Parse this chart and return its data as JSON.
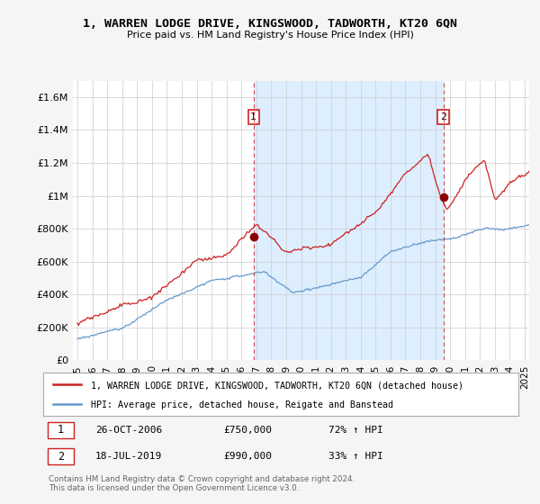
{
  "title": "1, WARREN LODGE DRIVE, KINGSWOOD, TADWORTH, KT20 6QN",
  "subtitle": "Price paid vs. HM Land Registry's House Price Index (HPI)",
  "property_color": "#cc2222",
  "hpi_color": "#6699cc",
  "shade_color": "#ddeeff",
  "background_color": "#f5f5f5",
  "plot_bg_color": "#ffffff",
  "ylim": [
    0,
    1700000
  ],
  "yticks": [
    0,
    200000,
    400000,
    600000,
    800000,
    1000000,
    1200000,
    1400000,
    1600000
  ],
  "ytick_labels": [
    "£0",
    "£200K",
    "£400K",
    "£600K",
    "£800K",
    "£1M",
    "£1.2M",
    "£1.4M",
    "£1.6M"
  ],
  "sale1_year": 2006.82,
  "sale1_price": 750000,
  "sale2_year": 2019.55,
  "sale2_price": 990000,
  "legend_property": "1, WARREN LODGE DRIVE, KINGSWOOD, TADWORTH, KT20 6QN (detached house)",
  "legend_hpi": "HPI: Average price, detached house, Reigate and Banstead",
  "footer": "Contains HM Land Registry data © Crown copyright and database right 2024.\nThis data is licensed under the Open Government Licence v3.0.",
  "xmin": 1995.0,
  "xmax": 2025.3
}
